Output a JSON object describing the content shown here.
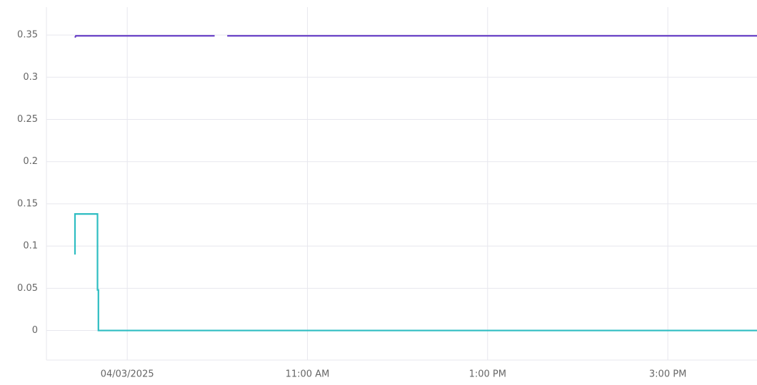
{
  "chart_data": {
    "type": "line",
    "xlim": [
      8.103,
      15.99
    ],
    "xticks": [
      {
        "value": 9,
        "label": "04/03/2025"
      },
      {
        "value": 11,
        "label": "11:00 AM"
      },
      {
        "value": 13,
        "label": "1:00 PM"
      },
      {
        "value": 15,
        "label": "3:00 PM"
      }
    ],
    "ylim": [
      -0.035,
      0.383
    ],
    "yticks": [
      0,
      0.05,
      0.1,
      0.15,
      0.2,
      0.25,
      0.3,
      0.35
    ],
    "grid": true,
    "series": [
      {
        "color": "#6941c6",
        "x": [
          8.42,
          8.43,
          9.97,
          10.04,
          10.11,
          15.99
        ],
        "values": [
          0.347,
          0.349,
          0.349,
          null,
          0.349,
          0.349
        ]
      },
      {
        "color": "#2ebdc2",
        "x": [
          8.42,
          8.42,
          8.67,
          8.67,
          8.68,
          8.68,
          15.99
        ],
        "values": [
          0.09,
          0.138,
          0.138,
          0.048,
          0.048,
          0,
          0
        ]
      }
    ]
  }
}
